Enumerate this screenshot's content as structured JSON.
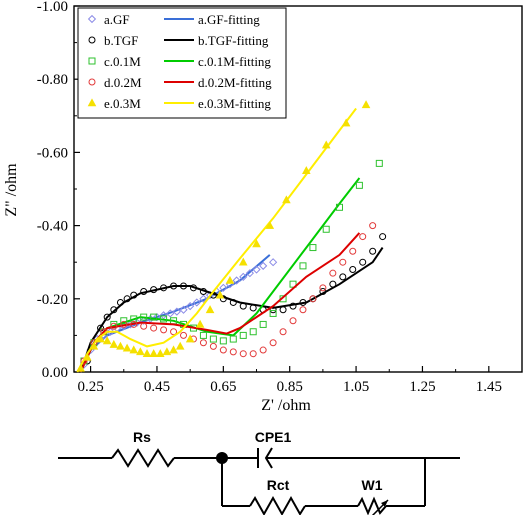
{
  "chart_data": {
    "type": "scatter",
    "xlabel": "Z' /ohm",
    "ylabel": "Z\" /ohm",
    "xlim": [
      0.2,
      1.55
    ],
    "ylim": [
      0,
      -1.0
    ],
    "x_ticks": [
      "0.25",
      "0.45",
      "0.65",
      "0.85",
      "1.05",
      "1.25",
      "1.45"
    ],
    "y_ticks": [
      "0.00",
      "-0.20",
      "-0.40",
      "-0.60",
      "-0.80",
      "-1.00"
    ],
    "legend_position": "top-left",
    "series": [
      {
        "name": "a.GF",
        "fit_name": "a.GF-fitting",
        "color": "#8a8ae6",
        "fit_color": "#3a6fd8",
        "marker": "diamond",
        "points": [
          [
            0.23,
            -0.02
          ],
          [
            0.25,
            -0.06
          ],
          [
            0.27,
            -0.09
          ],
          [
            0.29,
            -0.1
          ],
          [
            0.31,
            -0.11
          ],
          [
            0.33,
            -0.12
          ],
          [
            0.35,
            -0.125
          ],
          [
            0.37,
            -0.13
          ],
          [
            0.39,
            -0.135
          ],
          [
            0.41,
            -0.14
          ],
          [
            0.43,
            -0.145
          ],
          [
            0.45,
            -0.15
          ],
          [
            0.47,
            -0.155
          ],
          [
            0.49,
            -0.16
          ],
          [
            0.51,
            -0.165
          ],
          [
            0.53,
            -0.17
          ],
          [
            0.55,
            -0.18
          ],
          [
            0.57,
            -0.19
          ],
          [
            0.59,
            -0.2
          ],
          [
            0.61,
            -0.21
          ],
          [
            0.63,
            -0.22
          ],
          [
            0.65,
            -0.23
          ],
          [
            0.67,
            -0.24
          ],
          [
            0.69,
            -0.25
          ],
          [
            0.71,
            -0.26
          ],
          [
            0.73,
            -0.27
          ],
          [
            0.75,
            -0.28
          ],
          [
            0.77,
            -0.29
          ],
          [
            0.8,
            -0.3
          ]
        ],
        "fit": [
          [
            0.22,
            0.0
          ],
          [
            0.25,
            -0.06
          ],
          [
            0.3,
            -0.1
          ],
          [
            0.4,
            -0.135
          ],
          [
            0.5,
            -0.165
          ],
          [
            0.6,
            -0.2
          ],
          [
            0.7,
            -0.25
          ],
          [
            0.79,
            -0.32
          ]
        ]
      },
      {
        "name": "b.TGF",
        "fit_name": "b.TGF-fitting",
        "color": "#000000",
        "fit_color": "#000000",
        "marker": "circle",
        "points": [
          [
            0.24,
            -0.03
          ],
          [
            0.26,
            -0.08
          ],
          [
            0.28,
            -0.12
          ],
          [
            0.3,
            -0.15
          ],
          [
            0.32,
            -0.17
          ],
          [
            0.34,
            -0.19
          ],
          [
            0.36,
            -0.2
          ],
          [
            0.38,
            -0.21
          ],
          [
            0.41,
            -0.22
          ],
          [
            0.44,
            -0.225
          ],
          [
            0.47,
            -0.23
          ],
          [
            0.5,
            -0.235
          ],
          [
            0.53,
            -0.235
          ],
          [
            0.56,
            -0.23
          ],
          [
            0.59,
            -0.22
          ],
          [
            0.62,
            -0.21
          ],
          [
            0.65,
            -0.2
          ],
          [
            0.68,
            -0.19
          ],
          [
            0.71,
            -0.18
          ],
          [
            0.74,
            -0.175
          ],
          [
            0.77,
            -0.17
          ],
          [
            0.8,
            -0.17
          ],
          [
            0.83,
            -0.17
          ],
          [
            0.86,
            -0.18
          ],
          [
            0.89,
            -0.19
          ],
          [
            0.92,
            -0.2
          ],
          [
            0.95,
            -0.22
          ],
          [
            0.98,
            -0.24
          ],
          [
            1.01,
            -0.26
          ],
          [
            1.04,
            -0.28
          ],
          [
            1.07,
            -0.3
          ],
          [
            1.1,
            -0.33
          ],
          [
            1.13,
            -0.37
          ]
        ],
        "fit": [
          [
            0.22,
            0.0
          ],
          [
            0.25,
            -0.08
          ],
          [
            0.3,
            -0.15
          ],
          [
            0.35,
            -0.19
          ],
          [
            0.4,
            -0.215
          ],
          [
            0.5,
            -0.235
          ],
          [
            0.55,
            -0.235
          ],
          [
            0.6,
            -0.22
          ],
          [
            0.7,
            -0.19
          ],
          [
            0.8,
            -0.175
          ],
          [
            0.9,
            -0.19
          ],
          [
            1.0,
            -0.24
          ],
          [
            1.1,
            -0.3
          ],
          [
            1.13,
            -0.34
          ]
        ]
      },
      {
        "name": "c.0.1M",
        "fit_name": "c.0.1M-fitting",
        "color": "#2ec12e",
        "fit_color": "#00cc00",
        "marker": "square",
        "points": [
          [
            0.23,
            -0.03
          ],
          [
            0.26,
            -0.08
          ],
          [
            0.29,
            -0.11
          ],
          [
            0.32,
            -0.13
          ],
          [
            0.35,
            -0.14
          ],
          [
            0.38,
            -0.145
          ],
          [
            0.41,
            -0.15
          ],
          [
            0.44,
            -0.15
          ],
          [
            0.47,
            -0.145
          ],
          [
            0.5,
            -0.14
          ],
          [
            0.53,
            -0.13
          ],
          [
            0.56,
            -0.12
          ],
          [
            0.59,
            -0.1
          ],
          [
            0.62,
            -0.09
          ],
          [
            0.65,
            -0.085
          ],
          [
            0.68,
            -0.09
          ],
          [
            0.71,
            -0.1
          ],
          [
            0.74,
            -0.11
          ],
          [
            0.77,
            -0.13
          ],
          [
            0.8,
            -0.16
          ],
          [
            0.83,
            -0.2
          ],
          [
            0.86,
            -0.24
          ],
          [
            0.89,
            -0.29
          ],
          [
            0.92,
            -0.34
          ],
          [
            0.96,
            -0.39
          ],
          [
            1.0,
            -0.45
          ],
          [
            1.06,
            -0.51
          ],
          [
            1.12,
            -0.57
          ]
        ],
        "fit": [
          [
            0.22,
            0.0
          ],
          [
            0.26,
            -0.08
          ],
          [
            0.3,
            -0.12
          ],
          [
            0.4,
            -0.15
          ],
          [
            0.5,
            -0.14
          ],
          [
            0.6,
            -0.11
          ],
          [
            0.68,
            -0.1
          ],
          [
            0.75,
            -0.16
          ],
          [
            0.8,
            -0.22
          ],
          [
            0.9,
            -0.34
          ],
          [
            1.0,
            -0.46
          ],
          [
            1.06,
            -0.53
          ]
        ]
      },
      {
        "name": "d.0.2M",
        "fit_name": "d.0.2M-fitting",
        "color": "#e23a3a",
        "fit_color": "#dd0000",
        "marker": "circle",
        "points": [
          [
            0.23,
            -0.03
          ],
          [
            0.26,
            -0.08
          ],
          [
            0.29,
            -0.11
          ],
          [
            0.32,
            -0.125
          ],
          [
            0.35,
            -0.13
          ],
          [
            0.38,
            -0.13
          ],
          [
            0.41,
            -0.125
          ],
          [
            0.44,
            -0.12
          ],
          [
            0.47,
            -0.115
          ],
          [
            0.5,
            -0.11
          ],
          [
            0.53,
            -0.1
          ],
          [
            0.56,
            -0.09
          ],
          [
            0.59,
            -0.08
          ],
          [
            0.62,
            -0.07
          ],
          [
            0.65,
            -0.06
          ],
          [
            0.68,
            -0.055
          ],
          [
            0.71,
            -0.05
          ],
          [
            0.74,
            -0.05
          ],
          [
            0.77,
            -0.06
          ],
          [
            0.8,
            -0.08
          ],
          [
            0.83,
            -0.11
          ],
          [
            0.86,
            -0.14
          ],
          [
            0.89,
            -0.17
          ],
          [
            0.92,
            -0.2
          ],
          [
            0.95,
            -0.23
          ],
          [
            0.98,
            -0.27
          ],
          [
            1.01,
            -0.3
          ],
          [
            1.04,
            -0.33
          ],
          [
            1.07,
            -0.37
          ],
          [
            1.1,
            -0.4
          ]
        ],
        "fit": [
          [
            0.22,
            0.0
          ],
          [
            0.26,
            -0.08
          ],
          [
            0.3,
            -0.12
          ],
          [
            0.4,
            -0.135
          ],
          [
            0.5,
            -0.13
          ],
          [
            0.6,
            -0.115
          ],
          [
            0.66,
            -0.105
          ],
          [
            0.7,
            -0.12
          ],
          [
            0.8,
            -0.18
          ],
          [
            0.9,
            -0.26
          ],
          [
            1.0,
            -0.32
          ],
          [
            1.06,
            -0.38
          ]
        ]
      },
      {
        "name": "e.0.3M",
        "fit_name": "e.0.3M-fitting",
        "color": "#f5e000",
        "fit_color": "#ffee00",
        "marker": "triangle",
        "points": [
          [
            0.22,
            -0.01
          ],
          [
            0.24,
            -0.04
          ],
          [
            0.26,
            -0.07
          ],
          [
            0.28,
            -0.09
          ],
          [
            0.3,
            -0.085
          ],
          [
            0.32,
            -0.075
          ],
          [
            0.34,
            -0.07
          ],
          [
            0.36,
            -0.065
          ],
          [
            0.38,
            -0.06
          ],
          [
            0.4,
            -0.055
          ],
          [
            0.42,
            -0.05
          ],
          [
            0.44,
            -0.05
          ],
          [
            0.46,
            -0.05
          ],
          [
            0.48,
            -0.055
          ],
          [
            0.5,
            -0.06
          ],
          [
            0.52,
            -0.07
          ],
          [
            0.55,
            -0.09
          ],
          [
            0.58,
            -0.13
          ],
          [
            0.61,
            -0.17
          ],
          [
            0.64,
            -0.21
          ],
          [
            0.67,
            -0.25
          ],
          [
            0.71,
            -0.3
          ],
          [
            0.75,
            -0.35
          ],
          [
            0.79,
            -0.4
          ],
          [
            0.84,
            -0.47
          ],
          [
            0.9,
            -0.55
          ],
          [
            0.96,
            -0.62
          ],
          [
            1.02,
            -0.68
          ],
          [
            1.08,
            -0.73
          ]
        ],
        "fit": [
          [
            0.21,
            0.0
          ],
          [
            0.24,
            -0.05
          ],
          [
            0.27,
            -0.09
          ],
          [
            0.3,
            -0.11
          ],
          [
            0.33,
            -0.11
          ],
          [
            0.37,
            -0.09
          ],
          [
            0.42,
            -0.07
          ],
          [
            0.47,
            -0.08
          ],
          [
            0.52,
            -0.11
          ],
          [
            0.57,
            -0.16
          ],
          [
            0.62,
            -0.22
          ],
          [
            0.7,
            -0.31
          ],
          [
            0.8,
            -0.42
          ],
          [
            0.9,
            -0.54
          ],
          [
            1.0,
            -0.66
          ],
          [
            1.05,
            -0.72
          ]
        ]
      }
    ]
  },
  "circuit": {
    "labels": {
      "rs": "Rs",
      "cpe": "CPE1",
      "rct": "Rct",
      "w": "W1"
    }
  }
}
